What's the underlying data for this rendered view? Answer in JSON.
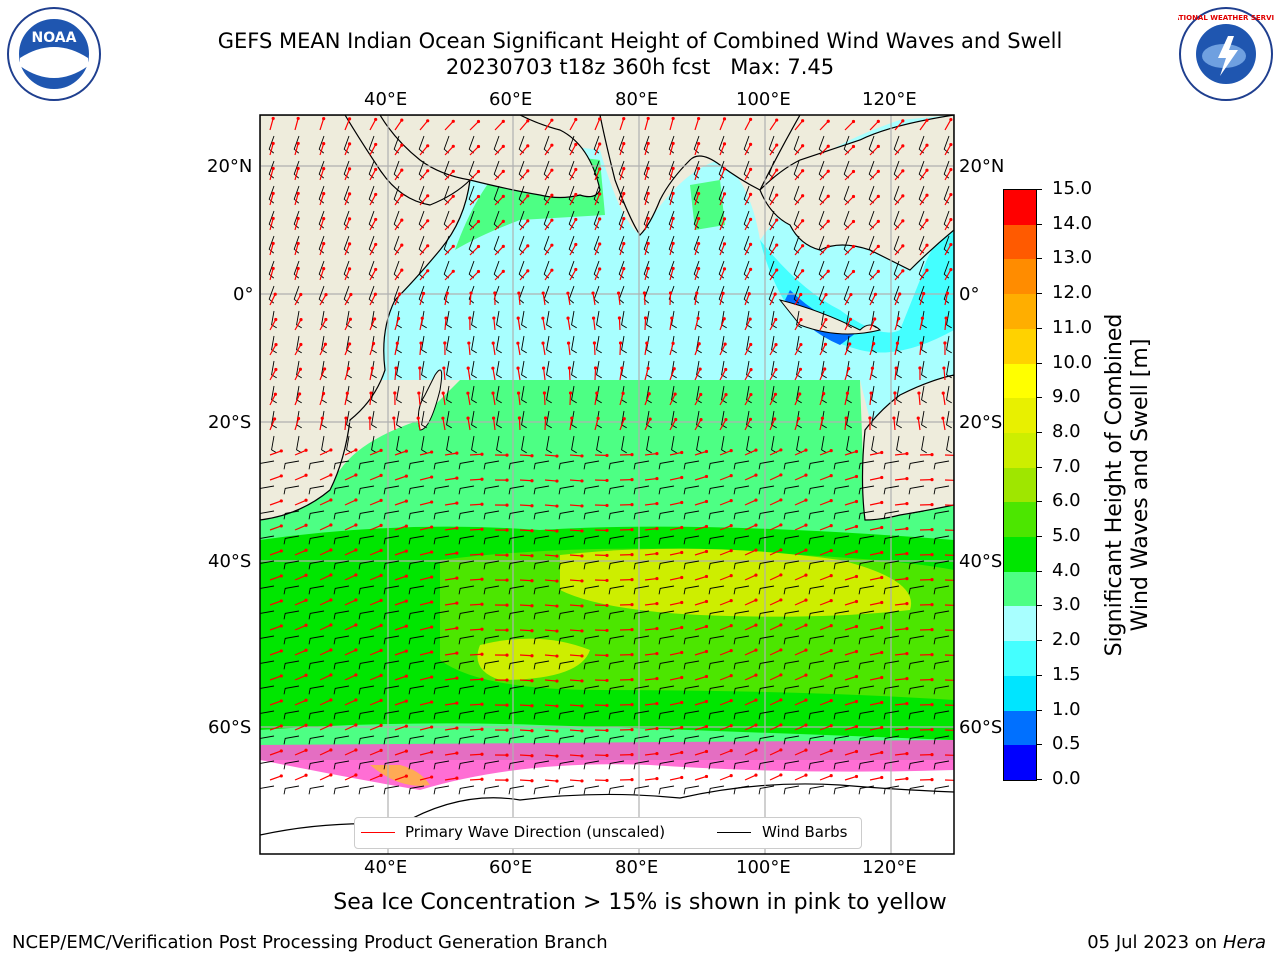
{
  "title": {
    "line1": "GEFS MEAN Indian Ocean Significant Height of Combined Wind Waves and Swell",
    "line2": "20230703 t18z 360h fcst   Max: 7.45"
  },
  "logos": {
    "noaa": {
      "label": "NOAA"
    },
    "nws": {
      "label": "NATIONAL WEATHER SERVICE"
    }
  },
  "map": {
    "lon_labels": [
      "40°E",
      "60°E",
      "80°E",
      "100°E",
      "120°E"
    ],
    "lat_labels": [
      "20°N",
      "0°",
      "20°S",
      "40°S",
      "60°S"
    ],
    "colors": {
      "land": "#eeecdc",
      "ice_free_south": "#ffffff",
      "frame": "#000000",
      "grid": "#b0b0b0",
      "arrow": "#ff0000",
      "barb": "#000000"
    }
  },
  "legend": {
    "wave_direction": "Primary Wave Direction (unscaled)",
    "wind_barbs": "Wind Barbs"
  },
  "colorbar": {
    "title": "Significant Height of Combined Wind Waves and Swell [m]",
    "ticks": [
      "0.0",
      "0.5",
      "1.0",
      "1.5",
      "2.0",
      "3.0",
      "4.0",
      "5.0",
      "6.0",
      "7.0",
      "8.0",
      "9.0",
      "10.0",
      "11.0",
      "12.0",
      "13.0",
      "14.0",
      "15.0"
    ],
    "colors": [
      "#0000ff",
      "#0070ff",
      "#00e5ff",
      "#44ffff",
      "#a8ffff",
      "#4dff84",
      "#00e600",
      "#4ce600",
      "#9fe600",
      "#cdee00",
      "#e8f000",
      "#ffff00",
      "#ffd200",
      "#ffae00",
      "#ff8c00",
      "#ff5a00",
      "#ff0000"
    ]
  },
  "sea_ice_note": "Sea Ice Concentration > 15% is shown in pink to yellow",
  "footer": {
    "left": "NCEP/EMC/Verification Post Processing Product Generation Branch",
    "right_date": "05 Jul 2023 on ",
    "right_host": "Hera"
  }
}
